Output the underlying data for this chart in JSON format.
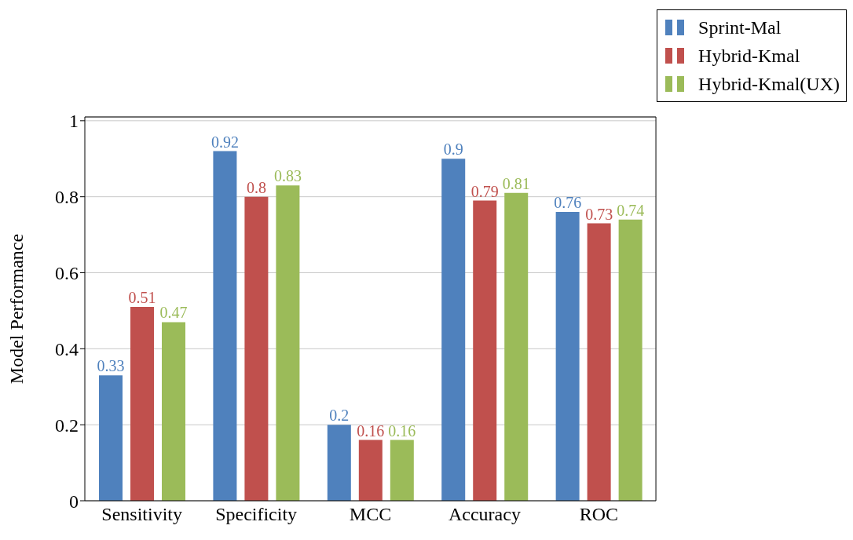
{
  "chart_data": {
    "type": "bar",
    "ylabel": "Model Performance",
    "categories": [
      "Sensitivity",
      "Specificity",
      "MCC",
      "Accuracy",
      "ROC"
    ],
    "series": [
      {
        "name": "Sprint-Mal",
        "color": "#4f81bd",
        "values": [
          0.33,
          0.92,
          0.2,
          0.9,
          0.76
        ]
      },
      {
        "name": "Hybrid-Kmal",
        "color": "#c0504d",
        "values": [
          0.51,
          0.8,
          0.16,
          0.79,
          0.73
        ]
      },
      {
        "name": "Hybrid-Kmal(UX)",
        "color": "#9bbb59",
        "values": [
          0.47,
          0.83,
          0.16,
          0.81,
          0.74
        ]
      }
    ],
    "ylim": [
      0,
      1.01
    ],
    "yticks": [
      0,
      0.2,
      0.4,
      0.6,
      0.8,
      1
    ],
    "grid": "y",
    "legend": "top right",
    "data_labels": true
  }
}
